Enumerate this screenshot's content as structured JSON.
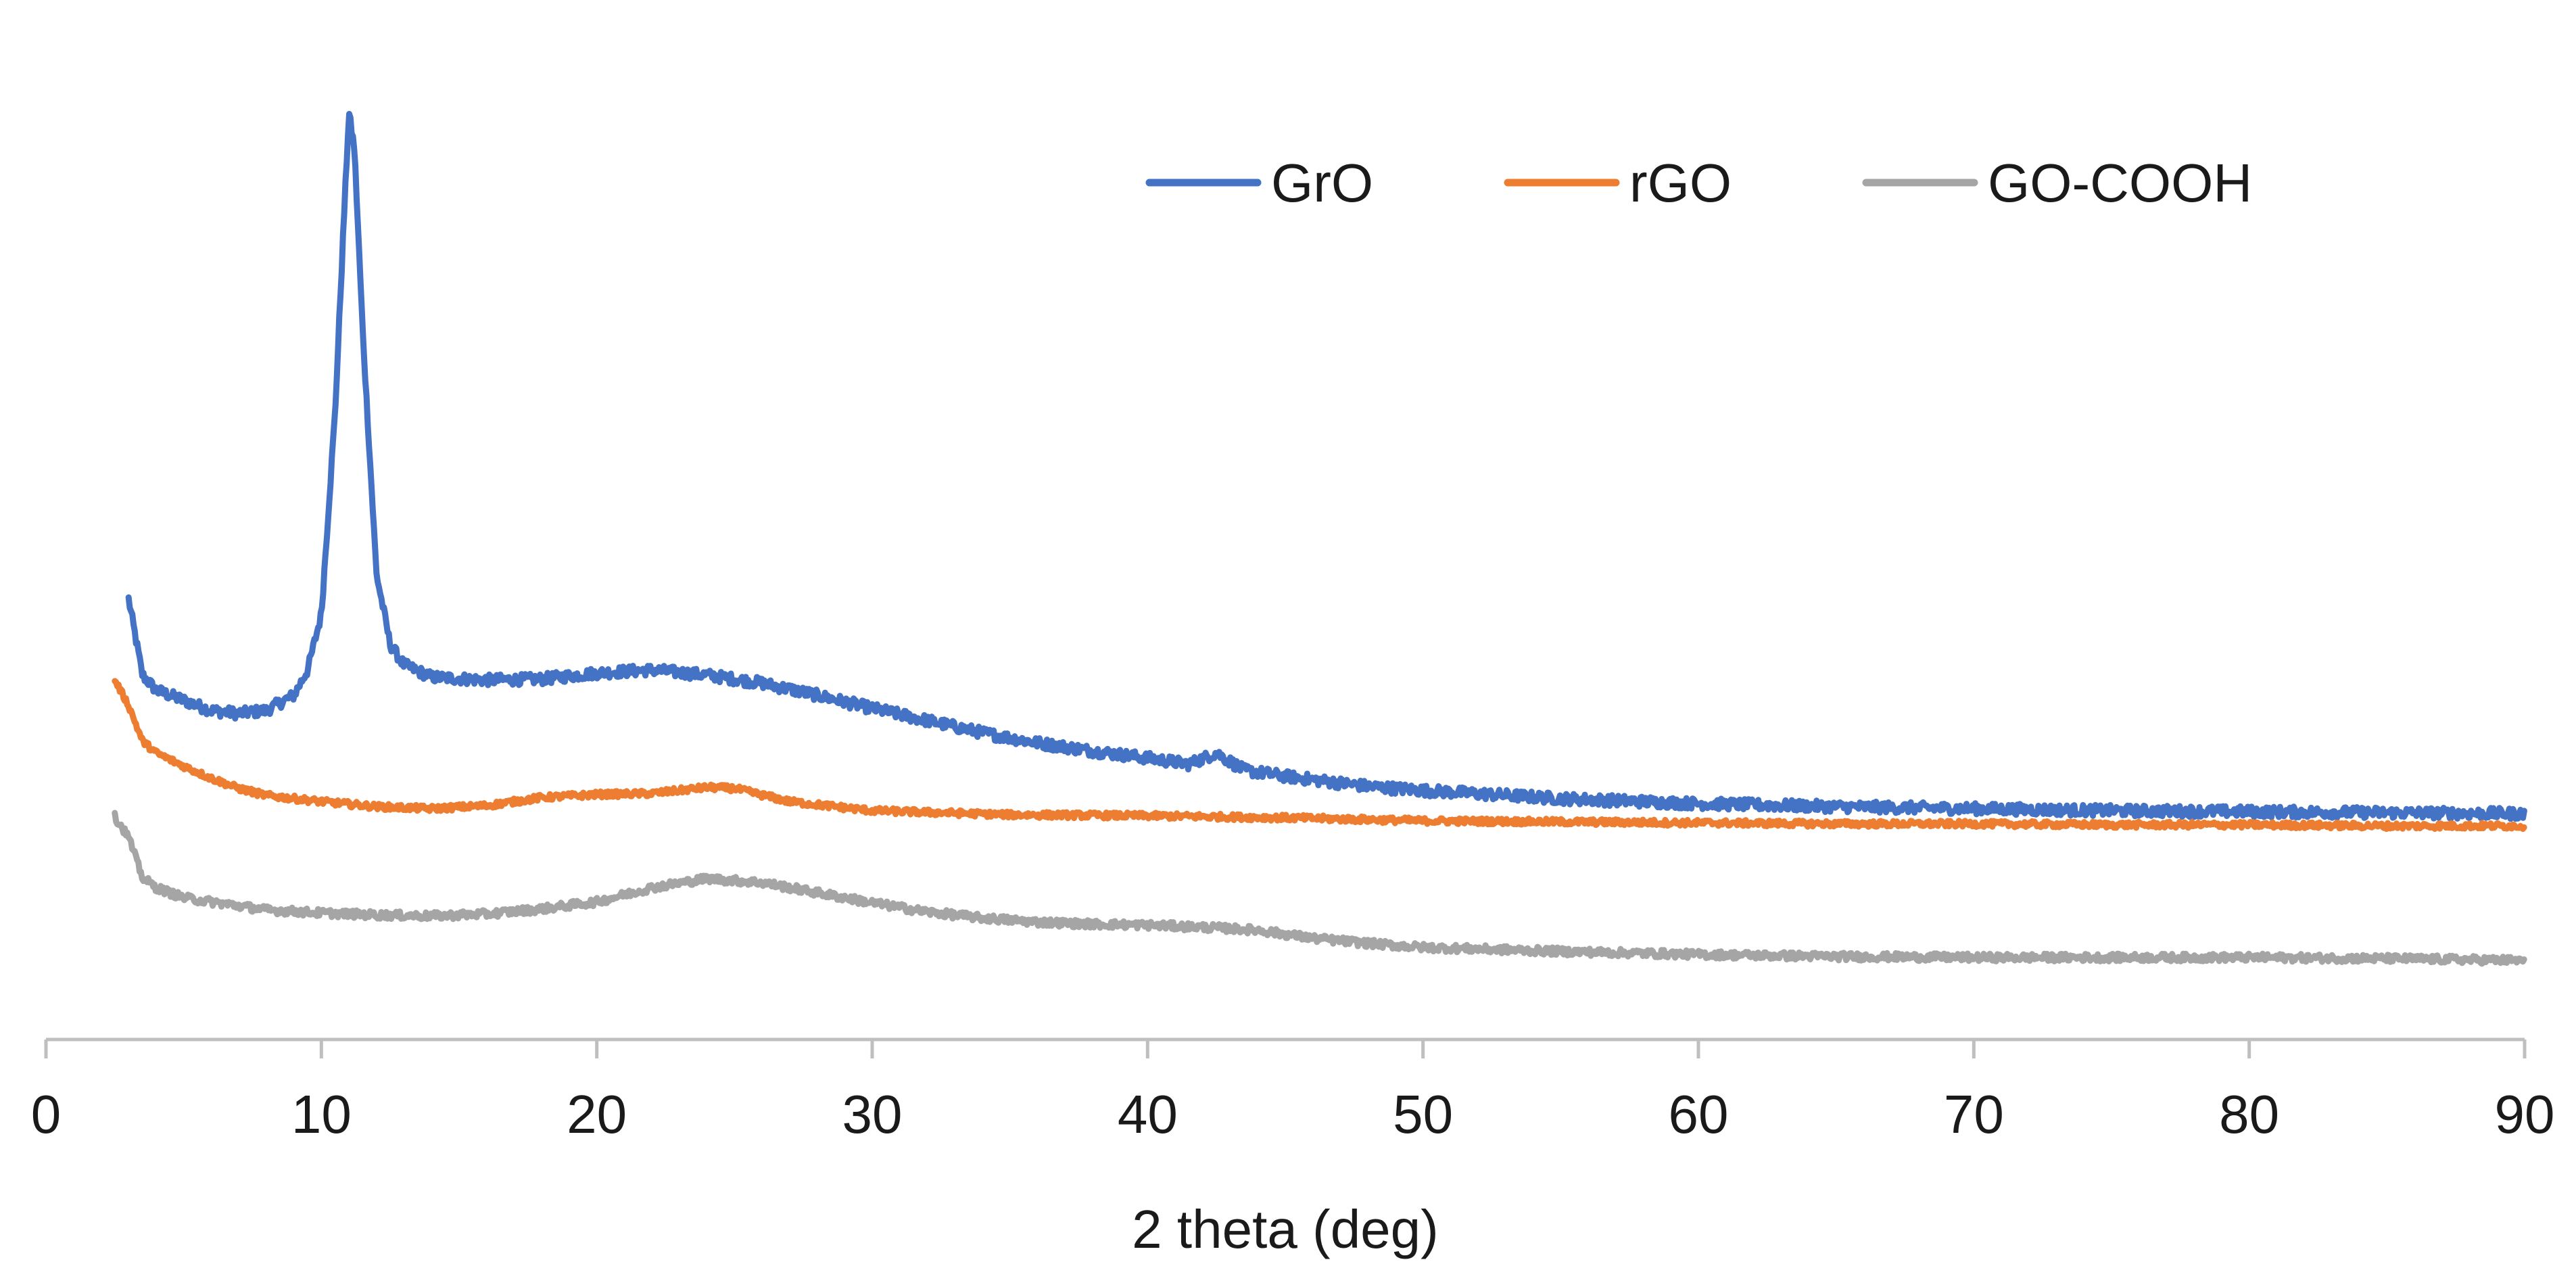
{
  "chart_data": {
    "type": "line",
    "title": "",
    "xlabel": "2 theta (deg)",
    "ylabel": "",
    "xlim": [
      0,
      90
    ],
    "ylim": [
      0,
      100
    ],
    "x_ticks": [
      "0",
      "10",
      "20",
      "30",
      "40",
      "50",
      "60",
      "70",
      "80",
      "90"
    ],
    "y_axis_visible": false,
    "grid": false,
    "legend_position": "top-right",
    "series": [
      {
        "name": "GrO",
        "color": "#4472C4",
        "points": [
          [
            3.0,
            43.5
          ],
          [
            3.5,
            36.0
          ],
          [
            4.0,
            34.5
          ],
          [
            5.0,
            33.5
          ],
          [
            6.0,
            32.5
          ],
          [
            7.0,
            32.2
          ],
          [
            8.0,
            32.5
          ],
          [
            9.0,
            34.0
          ],
          [
            9.5,
            36.5
          ],
          [
            10.0,
            42.0
          ],
          [
            10.5,
            62.0
          ],
          [
            10.8,
            80.0
          ],
          [
            11.0,
            91.5
          ],
          [
            11.2,
            88.0
          ],
          [
            11.5,
            70.0
          ],
          [
            12.0,
            46.0
          ],
          [
            12.5,
            39.0
          ],
          [
            13.0,
            37.0
          ],
          [
            14.0,
            35.8
          ],
          [
            16.0,
            35.5
          ],
          [
            18.0,
            35.6
          ],
          [
            20.0,
            36.2
          ],
          [
            22.0,
            36.5
          ],
          [
            24.0,
            36.0
          ],
          [
            26.0,
            35.2
          ],
          [
            28.0,
            34.0
          ],
          [
            30.0,
            32.7
          ],
          [
            32.0,
            31.5
          ],
          [
            34.0,
            30.3
          ],
          [
            36.0,
            29.3
          ],
          [
            38.0,
            28.5
          ],
          [
            40.0,
            27.8
          ],
          [
            41.5,
            27.2
          ],
          [
            42.5,
            28.3
          ],
          [
            43.5,
            26.6
          ],
          [
            45.0,
            26.0
          ],
          [
            48.0,
            25.0
          ],
          [
            50.0,
            24.6
          ],
          [
            55.0,
            23.8
          ],
          [
            60.0,
            23.3
          ],
          [
            65.0,
            23.0
          ],
          [
            70.0,
            22.8
          ],
          [
            75.0,
            22.6
          ],
          [
            80.0,
            22.5
          ],
          [
            85.0,
            22.4
          ],
          [
            90.0,
            22.3
          ]
        ]
      },
      {
        "name": "rGO",
        "color": "#ED7D31",
        "points": [
          [
            2.5,
            35.5
          ],
          [
            3.0,
            33.0
          ],
          [
            3.5,
            29.5
          ],
          [
            4.0,
            28.3
          ],
          [
            5.0,
            27.0
          ],
          [
            6.0,
            25.8
          ],
          [
            7.0,
            24.8
          ],
          [
            8.0,
            24.1
          ],
          [
            10.0,
            23.5
          ],
          [
            12.0,
            23.0
          ],
          [
            14.0,
            22.8
          ],
          [
            16.0,
            23.1
          ],
          [
            18.0,
            23.9
          ],
          [
            20.0,
            24.2
          ],
          [
            22.0,
            24.3
          ],
          [
            24.0,
            24.9
          ],
          [
            25.0,
            24.8
          ],
          [
            27.0,
            23.5
          ],
          [
            30.0,
            22.6
          ],
          [
            35.0,
            22.2
          ],
          [
            40.0,
            22.1
          ],
          [
            45.0,
            21.9
          ],
          [
            50.0,
            21.6
          ],
          [
            55.0,
            21.5
          ],
          [
            60.0,
            21.4
          ],
          [
            65.0,
            21.3
          ],
          [
            70.0,
            21.3
          ],
          [
            75.0,
            21.2
          ],
          [
            80.0,
            21.2
          ],
          [
            85.0,
            21.1
          ],
          [
            90.0,
            21.1
          ]
        ]
      },
      {
        "name": "GO-COOH",
        "color": "#A5A5A5",
        "points": [
          [
            2.5,
            22.0
          ],
          [
            3.0,
            20.0
          ],
          [
            3.5,
            16.0
          ],
          [
            4.0,
            15.0
          ],
          [
            5.0,
            14.0
          ],
          [
            6.0,
            13.6
          ],
          [
            8.0,
            12.8
          ],
          [
            10.0,
            12.5
          ],
          [
            12.0,
            12.3
          ],
          [
            14.0,
            12.2
          ],
          [
            16.0,
            12.4
          ],
          [
            18.0,
            12.9
          ],
          [
            20.0,
            13.6
          ],
          [
            22.0,
            15.0
          ],
          [
            24.0,
            15.9
          ],
          [
            26.0,
            15.5
          ],
          [
            28.0,
            14.5
          ],
          [
            30.0,
            13.5
          ],
          [
            32.0,
            12.6
          ],
          [
            34.0,
            12.0
          ],
          [
            36.0,
            11.6
          ],
          [
            38.0,
            11.4
          ],
          [
            40.0,
            11.3
          ],
          [
            42.0,
            11.1
          ],
          [
            44.0,
            10.8
          ],
          [
            46.0,
            10.0
          ],
          [
            48.0,
            9.5
          ],
          [
            50.0,
            9.1
          ],
          [
            55.0,
            8.7
          ],
          [
            60.0,
            8.4
          ],
          [
            65.0,
            8.2
          ],
          [
            70.0,
            8.1
          ],
          [
            75.0,
            8.1
          ],
          [
            80.0,
            8.1
          ],
          [
            85.0,
            8.0
          ],
          [
            90.0,
            7.8
          ]
        ]
      }
    ]
  }
}
